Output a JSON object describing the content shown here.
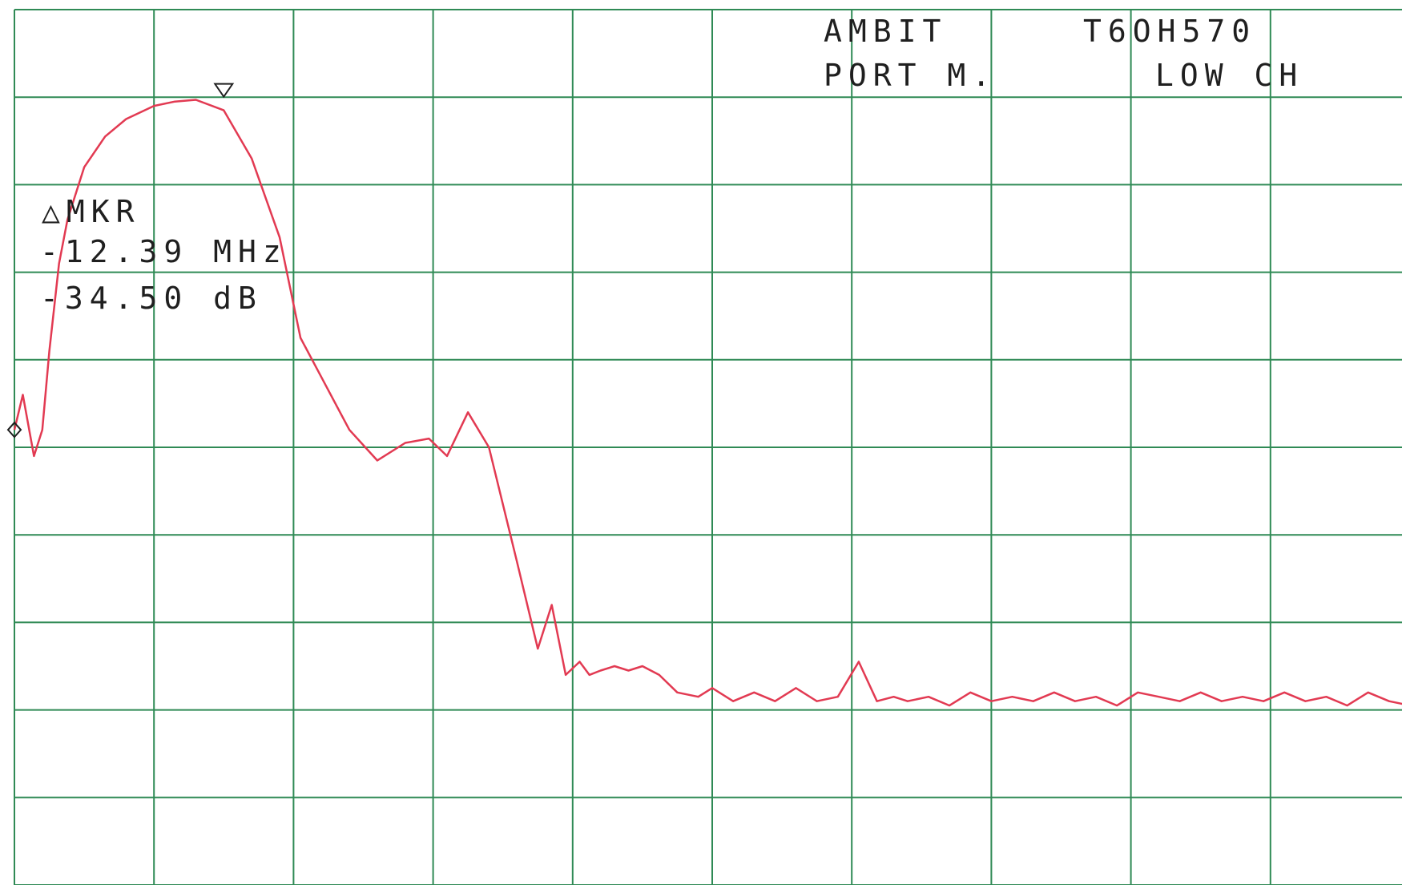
{
  "colors": {
    "grid": "#2f8a55",
    "trace": "#e23a52",
    "text": "#1f1f1f",
    "marker": "#1f1f1f"
  },
  "header": {
    "line1_left": "AMBIT",
    "line1_right": "T6OH570",
    "line2_left": "PORT M.",
    "line2_right": "LOW CH"
  },
  "marker_readout": {
    "label": "△MKR",
    "frequency": "-12.39 MHz",
    "amplitude": "-34.50 dB"
  },
  "chart_data": {
    "type": "line",
    "title": "",
    "xlabel": "",
    "ylabel": "",
    "x_divisions": 10,
    "y_divisions": 10,
    "xlim": [
      0,
      10
    ],
    "ylim": [
      0,
      10
    ],
    "grid": true,
    "legend": "none",
    "series": [
      {
        "x": [
          0.0,
          0.06,
          0.14,
          0.2,
          0.25,
          0.32,
          0.38,
          0.5,
          0.65,
          0.8,
          1.0,
          1.15,
          1.3,
          1.5,
          1.7,
          1.9,
          2.05,
          2.2,
          2.4,
          2.6,
          2.8,
          2.97,
          3.1,
          3.25,
          3.4,
          3.6,
          3.75,
          3.85,
          3.95,
          4.05,
          4.12,
          4.2,
          4.3,
          4.4,
          4.5,
          4.62,
          4.75,
          4.9,
          5.0,
          5.15,
          5.3,
          5.45,
          5.6,
          5.75,
          5.9,
          6.05,
          6.18,
          6.3,
          6.4,
          6.55,
          6.7,
          6.85,
          7.0,
          7.15,
          7.3,
          7.45,
          7.6,
          7.75,
          7.9,
          8.05,
          8.2,
          8.35,
          8.5,
          8.65,
          8.8,
          8.95,
          9.1,
          9.25,
          9.4,
          9.55,
          9.7,
          9.85,
          10.0
        ],
        "y": [
          5.2,
          5.6,
          4.9,
          5.2,
          6.1,
          7.1,
          7.6,
          8.2,
          8.55,
          8.75,
          8.9,
          8.95,
          8.97,
          8.85,
          8.3,
          7.4,
          6.25,
          5.8,
          5.2,
          4.85,
          5.05,
          5.1,
          4.9,
          5.4,
          5.0,
          3.7,
          2.7,
          3.2,
          2.4,
          2.55,
          2.4,
          2.45,
          2.5,
          2.45,
          2.5,
          2.4,
          2.2,
          2.15,
          2.25,
          2.1,
          2.2,
          2.1,
          2.25,
          2.1,
          2.15,
          2.55,
          2.1,
          2.15,
          2.1,
          2.15,
          2.05,
          2.2,
          2.1,
          2.15,
          2.1,
          2.2,
          2.1,
          2.15,
          2.05,
          2.2,
          2.15,
          2.1,
          2.2,
          2.1,
          2.15,
          2.1,
          2.2,
          2.1,
          2.15,
          2.05,
          2.2,
          2.1,
          2.05
        ]
      }
    ],
    "markers": [
      {
        "kind": "reference-diamond",
        "x": 0.0,
        "y": 5.2
      },
      {
        "kind": "delta-triangle",
        "x": 1.5,
        "y": 8.95
      }
    ]
  }
}
